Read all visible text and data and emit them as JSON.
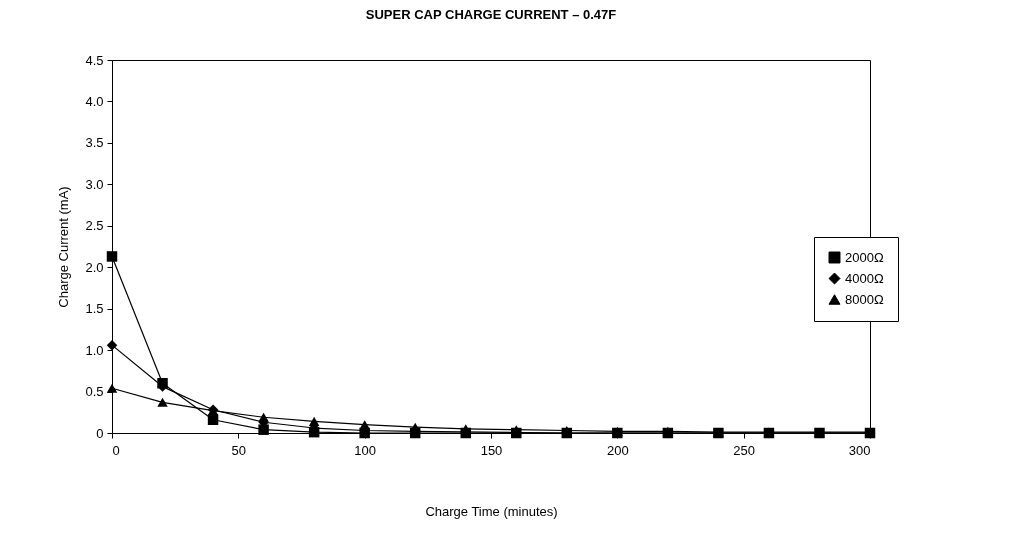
{
  "chart_data": {
    "type": "line",
    "title": "SUPER CAP CHARGE CURRENT – 0.47F",
    "xlabel": "Charge Time (minutes)",
    "ylabel": "Charge Current (mA)",
    "x": [
      0,
      20,
      40,
      60,
      80,
      100,
      120,
      140,
      160,
      180,
      200,
      220,
      240,
      260,
      280,
      300
    ],
    "series": [
      {
        "name": "2000Ω",
        "color": "#000000",
        "marker": "square",
        "values": [
          2.13,
          0.6,
          0.16,
          0.04,
          0.01,
          0,
          0,
          0,
          0,
          0,
          0,
          0,
          0,
          0,
          0,
          0
        ]
      },
      {
        "name": "4000Ω",
        "color": "#000000",
        "marker": "diamond",
        "values": [
          1.06,
          0.56,
          0.28,
          0.13,
          0.06,
          0.03,
          0.02,
          null,
          null,
          0,
          0,
          0,
          0,
          0,
          0,
          0
        ]
      },
      {
        "name": "8000Ω",
        "color": "#000000",
        "marker": "triangle",
        "values": [
          0.54,
          0.37,
          0.27,
          0.19,
          0.14,
          0.1,
          0.07,
          0.05,
          0.04,
          0.03,
          0.02,
          0.02,
          0.01,
          0.01,
          0.01,
          0.01
        ]
      }
    ],
    "xlim": [
      0,
      300
    ],
    "xticks": [
      0,
      50,
      100,
      150,
      200,
      250,
      300
    ],
    "ylim": [
      0,
      4.5
    ],
    "yticks": [
      0,
      0.5,
      {
        "value": 1,
        "label": "1.0"
      },
      1.5,
      {
        "value": 2,
        "label": "2.0"
      },
      2.5,
      {
        "value": 3,
        "label": "3.0"
      },
      3.5,
      {
        "value": 4,
        "label": "4.0"
      },
      4.5
    ],
    "grid": false,
    "legend": "right",
    "line_style": "solid"
  }
}
